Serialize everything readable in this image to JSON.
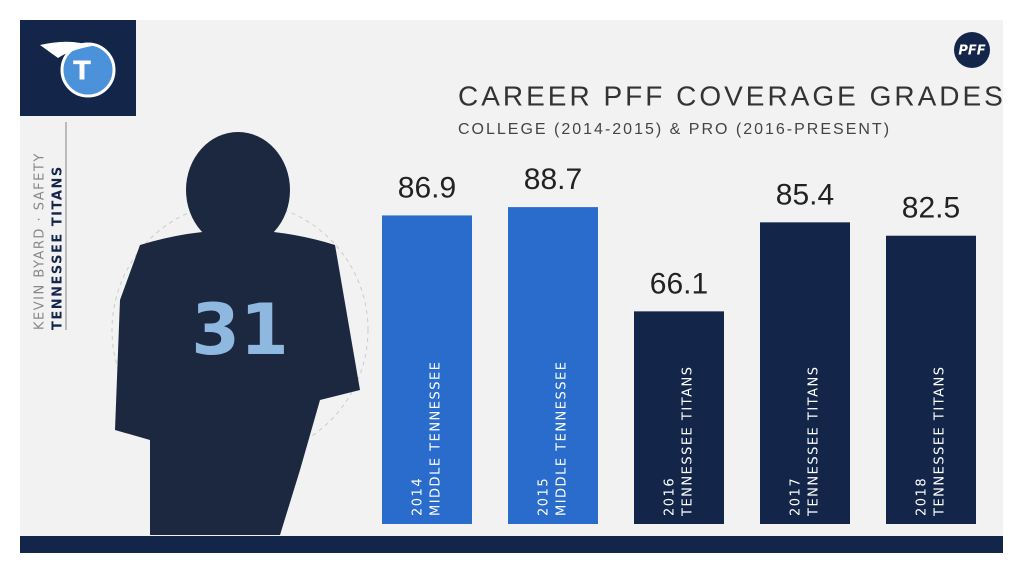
{
  "chart_data": {
    "type": "bar",
    "title": "CAREER PFF COVERAGE GRADES",
    "subtitle": "COLLEGE (2014-2015) & PRO (2016-PRESENT)",
    "player": "KEVIN BYARD · SAFETY",
    "team": "TENNESSEE TITANS",
    "brand": "PFF",
    "categories": [
      "2014",
      "2015",
      "2016",
      "2017",
      "2018"
    ],
    "teams": [
      "MIDDLE TENNESSEE",
      "MIDDLE TENNESSEE",
      "TENNESSEE TITANS",
      "TENNESSEE TITANS",
      "TENNESSEE TITANS"
    ],
    "values": [
      86.9,
      88.7,
      66.1,
      85.4,
      82.5
    ],
    "colors": [
      "#2a6ccc",
      "#2a6ccc",
      "#14254a",
      "#14254a",
      "#14254a"
    ],
    "ylim": [
      20,
      100
    ]
  }
}
